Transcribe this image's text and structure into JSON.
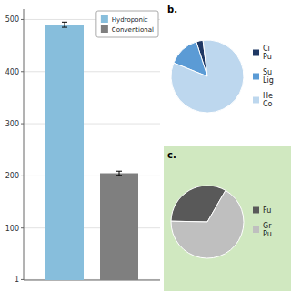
{
  "chart_data": [
    {
      "type": "bar",
      "categories": [
        null
      ],
      "series": [
        {
          "name": "Hydroponic",
          "color": "#87BEDC",
          "values": [
            490
          ],
          "errors": [
            5
          ]
        },
        {
          "name": "Conventional",
          "color": "#7F7F7F",
          "values": [
            205
          ],
          "errors": [
            4
          ]
        }
      ],
      "ylim": [
        0,
        520
      ],
      "yticks": [
        1,
        100,
        200,
        300,
        400,
        500
      ],
      "grid": true,
      "legend": "upper right",
      "tick_labels": "y"
    },
    {
      "type": "pie",
      "title": "b.",
      "categories": [
        "Ci\nPu",
        "Su\nLig",
        "He\nCo"
      ],
      "values": [
        3,
        14,
        83
      ],
      "colors": [
        "#1F3864",
        "#5B9BD5",
        "#BDD7EE"
      ],
      "legend": "right"
    },
    {
      "type": "pie",
      "title": "c.",
      "categories": [
        "Fu",
        "Gr\nPu"
      ],
      "values": [
        33,
        67
      ],
      "colors": [
        "#595959",
        "#BFBFBF"
      ],
      "legend": "right"
    }
  ]
}
